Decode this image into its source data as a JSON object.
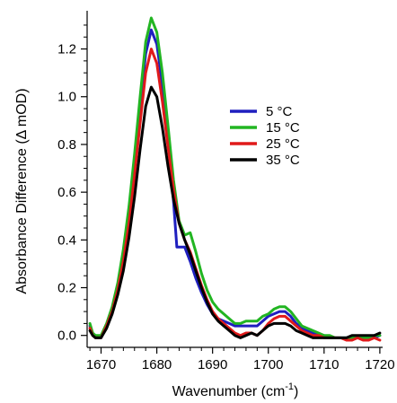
{
  "chart_data": {
    "type": "line",
    "title": "",
    "xlabel": "Wavenumber (cm",
    "xlabel_superscript": "-1",
    "xlabel_suffix": ")",
    "ylabel": "Absorbance Difference (Δ mOD)",
    "xlim": [
      1667.5,
      1720.5
    ],
    "ylim": [
      -0.05,
      1.36
    ],
    "xticks": [
      1670,
      1680,
      1690,
      1700,
      1710,
      1720
    ],
    "xtick_labels": [
      "1670",
      "1680",
      "1690",
      "1700",
      "1710",
      "1720"
    ],
    "yticks": [
      0.0,
      0.2,
      0.4,
      0.6,
      0.8,
      1.0,
      1.2
    ],
    "ytick_labels": [
      "0.0",
      "0.2",
      "0.4",
      "0.6",
      "0.8",
      "1.0",
      "1.2"
    ],
    "grid": false,
    "legend_position": "right",
    "series": [
      {
        "name": "5 °C",
        "color": "#1f1fbf",
        "points": [
          [
            1668,
            0.04
          ],
          [
            1668.5,
            0.01
          ],
          [
            1669,
            -0.01
          ],
          [
            1670,
            -0.01
          ],
          [
            1671,
            0.04
          ],
          [
            1672,
            0.11
          ],
          [
            1673,
            0.2
          ],
          [
            1674,
            0.33
          ],
          [
            1675,
            0.5
          ],
          [
            1676,
            0.71
          ],
          [
            1677,
            0.95
          ],
          [
            1678,
            1.18
          ],
          [
            1679,
            1.28
          ],
          [
            1680,
            1.22
          ],
          [
            1681,
            1.05
          ],
          [
            1682,
            0.83
          ],
          [
            1683,
            0.56
          ],
          [
            1683.6,
            0.37
          ],
          [
            1684,
            0.37
          ],
          [
            1685,
            0.37
          ],
          [
            1686,
            0.31
          ],
          [
            1687,
            0.24
          ],
          [
            1688,
            0.18
          ],
          [
            1689,
            0.13
          ],
          [
            1690,
            0.09
          ],
          [
            1691,
            0.07
          ],
          [
            1692,
            0.06
          ],
          [
            1693,
            0.05
          ],
          [
            1694,
            0.04
          ],
          [
            1695,
            0.04
          ],
          [
            1696,
            0.04
          ],
          [
            1697,
            0.04
          ],
          [
            1698,
            0.04
          ],
          [
            1699,
            0.06
          ],
          [
            1700,
            0.08
          ],
          [
            1701,
            0.09
          ],
          [
            1702,
            0.1
          ],
          [
            1703,
            0.1
          ],
          [
            1704,
            0.08
          ],
          [
            1705,
            0.05
          ],
          [
            1706,
            0.03
          ],
          [
            1707,
            0.02
          ],
          [
            1708,
            0.01
          ],
          [
            1709,
            0.0
          ],
          [
            1710,
            0.0
          ],
          [
            1711,
            -0.01
          ],
          [
            1712,
            -0.01
          ],
          [
            1713,
            -0.01
          ],
          [
            1714,
            -0.01
          ],
          [
            1715,
            -0.01
          ],
          [
            1716,
            -0.01
          ],
          [
            1717,
            -0.01
          ],
          [
            1718,
            -0.01
          ],
          [
            1719,
            -0.01
          ],
          [
            1720,
            0.0
          ]
        ]
      },
      {
        "name": "15 °C",
        "color": "#22b522",
        "points": [
          [
            1668,
            0.05
          ],
          [
            1668.5,
            0.01
          ],
          [
            1669,
            0.0
          ],
          [
            1670,
            0.0
          ],
          [
            1671,
            0.05
          ],
          [
            1672,
            0.12
          ],
          [
            1673,
            0.22
          ],
          [
            1674,
            0.36
          ],
          [
            1675,
            0.54
          ],
          [
            1676,
            0.76
          ],
          [
            1677,
            1.0
          ],
          [
            1678,
            1.23
          ],
          [
            1679,
            1.33
          ],
          [
            1680,
            1.27
          ],
          [
            1681,
            1.1
          ],
          [
            1682,
            0.88
          ],
          [
            1683,
            0.65
          ],
          [
            1684,
            0.48
          ],
          [
            1685,
            0.42
          ],
          [
            1686,
            0.43
          ],
          [
            1687,
            0.35
          ],
          [
            1688,
            0.26
          ],
          [
            1689,
            0.19
          ],
          [
            1690,
            0.14
          ],
          [
            1691,
            0.11
          ],
          [
            1692,
            0.09
          ],
          [
            1693,
            0.07
          ],
          [
            1694,
            0.05
          ],
          [
            1695,
            0.05
          ],
          [
            1696,
            0.06
          ],
          [
            1697,
            0.06
          ],
          [
            1698,
            0.06
          ],
          [
            1699,
            0.08
          ],
          [
            1700,
            0.09
          ],
          [
            1701,
            0.11
          ],
          [
            1702,
            0.12
          ],
          [
            1703,
            0.12
          ],
          [
            1704,
            0.1
          ],
          [
            1705,
            0.07
          ],
          [
            1706,
            0.04
          ],
          [
            1707,
            0.03
          ],
          [
            1708,
            0.02
          ],
          [
            1709,
            0.01
          ],
          [
            1710,
            0.0
          ],
          [
            1711,
            0.0
          ],
          [
            1712,
            -0.01
          ],
          [
            1713,
            -0.01
          ],
          [
            1714,
            -0.01
          ],
          [
            1715,
            -0.01
          ],
          [
            1716,
            -0.01
          ],
          [
            1717,
            -0.01
          ],
          [
            1718,
            -0.01
          ],
          [
            1719,
            0.0
          ],
          [
            1720,
            0.0
          ]
        ]
      },
      {
        "name": "25 °C",
        "color": "#e01a1a",
        "points": [
          [
            1668,
            0.03
          ],
          [
            1668.5,
            0.0
          ],
          [
            1669,
            -0.01
          ],
          [
            1670,
            -0.01
          ],
          [
            1671,
            0.04
          ],
          [
            1672,
            0.1
          ],
          [
            1673,
            0.19
          ],
          [
            1674,
            0.31
          ],
          [
            1675,
            0.47
          ],
          [
            1676,
            0.67
          ],
          [
            1677,
            0.89
          ],
          [
            1678,
            1.1
          ],
          [
            1679,
            1.2
          ],
          [
            1680,
            1.14
          ],
          [
            1681,
            0.98
          ],
          [
            1682,
            0.79
          ],
          [
            1683,
            0.61
          ],
          [
            1684,
            0.47
          ],
          [
            1685,
            0.4
          ],
          [
            1686,
            0.35
          ],
          [
            1687,
            0.28
          ],
          [
            1688,
            0.21
          ],
          [
            1689,
            0.15
          ],
          [
            1690,
            0.1
          ],
          [
            1691,
            0.07
          ],
          [
            1692,
            0.05
          ],
          [
            1693,
            0.03
          ],
          [
            1694,
            0.01
          ],
          [
            1695,
            0.0
          ],
          [
            1696,
            0.01
          ],
          [
            1697,
            0.01
          ],
          [
            1698,
            0.0
          ],
          [
            1699,
            0.02
          ],
          [
            1700,
            0.05
          ],
          [
            1701,
            0.07
          ],
          [
            1702,
            0.08
          ],
          [
            1703,
            0.08
          ],
          [
            1704,
            0.06
          ],
          [
            1705,
            0.04
          ],
          [
            1706,
            0.02
          ],
          [
            1707,
            0.01
          ],
          [
            1708,
            0.0
          ],
          [
            1709,
            0.0
          ],
          [
            1710,
            -0.01
          ],
          [
            1711,
            -0.01
          ],
          [
            1712,
            -0.01
          ],
          [
            1713,
            -0.01
          ],
          [
            1714,
            -0.02
          ],
          [
            1715,
            -0.02
          ],
          [
            1716,
            -0.01
          ],
          [
            1717,
            -0.02
          ],
          [
            1718,
            -0.02
          ],
          [
            1719,
            -0.01
          ],
          [
            1720,
            -0.02
          ]
        ]
      },
      {
        "name": "35 °C",
        "color": "#000000",
        "points": [
          [
            1668,
            0.02
          ],
          [
            1668.5,
            0.0
          ],
          [
            1669,
            -0.01
          ],
          [
            1670,
            -0.01
          ],
          [
            1671,
            0.03
          ],
          [
            1672,
            0.09
          ],
          [
            1673,
            0.17
          ],
          [
            1674,
            0.27
          ],
          [
            1675,
            0.41
          ],
          [
            1676,
            0.58
          ],
          [
            1677,
            0.78
          ],
          [
            1678,
            0.96
          ],
          [
            1679,
            1.04
          ],
          [
            1680,
            1.0
          ],
          [
            1681,
            0.87
          ],
          [
            1682,
            0.71
          ],
          [
            1683,
            0.57
          ],
          [
            1684,
            0.47
          ],
          [
            1685,
            0.4
          ],
          [
            1686,
            0.34
          ],
          [
            1687,
            0.27
          ],
          [
            1688,
            0.2
          ],
          [
            1689,
            0.14
          ],
          [
            1690,
            0.09
          ],
          [
            1691,
            0.06
          ],
          [
            1692,
            0.04
          ],
          [
            1693,
            0.02
          ],
          [
            1694,
            0.0
          ],
          [
            1695,
            -0.01
          ],
          [
            1696,
            0.0
          ],
          [
            1697,
            0.01
          ],
          [
            1698,
            0.0
          ],
          [
            1699,
            0.02
          ],
          [
            1700,
            0.04
          ],
          [
            1701,
            0.05
          ],
          [
            1702,
            0.05
          ],
          [
            1703,
            0.05
          ],
          [
            1704,
            0.04
          ],
          [
            1705,
            0.02
          ],
          [
            1706,
            0.01
          ],
          [
            1707,
            0.0
          ],
          [
            1708,
            -0.01
          ],
          [
            1709,
            -0.01
          ],
          [
            1710,
            -0.01
          ],
          [
            1711,
            -0.01
          ],
          [
            1712,
            -0.01
          ],
          [
            1713,
            -0.01
          ],
          [
            1714,
            -0.01
          ],
          [
            1715,
            0.0
          ],
          [
            1716,
            0.0
          ],
          [
            1717,
            0.0
          ],
          [
            1718,
            0.0
          ],
          [
            1719,
            0.0
          ],
          [
            1720,
            0.01
          ]
        ]
      }
    ]
  }
}
